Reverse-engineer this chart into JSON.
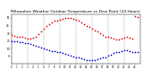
{
  "title": "Milwaukee Weather Outdoor Temperature vs Dew Point (24 Hours)",
  "title_fontsize": 3.2,
  "background_color": "#ffffff",
  "grid_color": "#888888",
  "xlim": [
    0,
    24
  ],
  "ylim": [
    -10,
    55
  ],
  "ytick_values": [
    0,
    10,
    20,
    30,
    40,
    50
  ],
  "ytick_labels": [
    "0",
    "10",
    "20",
    "30",
    "40",
    "50"
  ],
  "xtick_values": [
    0,
    1,
    2,
    3,
    4,
    5,
    6,
    7,
    8,
    9,
    10,
    11,
    12,
    13,
    14,
    15,
    16,
    17,
    18,
    19,
    20,
    21,
    22,
    23
  ],
  "vgrid_positions": [
    3,
    6,
    9,
    12,
    15,
    18,
    21
  ],
  "temp_x": [
    0,
    0.5,
    1,
    1.5,
    2,
    2.5,
    3,
    3.5,
    4,
    4.5,
    5,
    5.5,
    6,
    6.5,
    7,
    7.5,
    8,
    8.5,
    9,
    9.5,
    10,
    10.5,
    11,
    11.5,
    12,
    12.5,
    13,
    13.5,
    14,
    14.5,
    15,
    15.5,
    16,
    16.5,
    17,
    17.5,
    18,
    18.5,
    19,
    19.5,
    20,
    20.5,
    21,
    21.5,
    22,
    22.5,
    23,
    23.5
  ],
  "temp_y": [
    28,
    27,
    26,
    25,
    25,
    24,
    23,
    23,
    24,
    26,
    29,
    33,
    36,
    39,
    42,
    44,
    46,
    47,
    48,
    49,
    50,
    50,
    50,
    49,
    48,
    46,
    44,
    42,
    40,
    38,
    36,
    34,
    32,
    30,
    28,
    26,
    25,
    24,
    23,
    22,
    22,
    23,
    24,
    25,
    24,
    23,
    52,
    51
  ],
  "dew_x": [
    0,
    0.5,
    1,
    1.5,
    2,
    2.5,
    3,
    3.5,
    4,
    4.5,
    5,
    5.5,
    6,
    6.5,
    7,
    7.5,
    8,
    8.5,
    9,
    9.5,
    10,
    10.5,
    11,
    11.5,
    12,
    12.5,
    13,
    13.5,
    14,
    14.5,
    15,
    15.5,
    16,
    16.5,
    17,
    17.5,
    18,
    18.5,
    19,
    19.5,
    20,
    20.5,
    21,
    21.5,
    22,
    22.5,
    23,
    23.5
  ],
  "dew_y": [
    20,
    20,
    19,
    18,
    18,
    17,
    17,
    16,
    15,
    14,
    13,
    11,
    10,
    9,
    8,
    7,
    7,
    6,
    5,
    4,
    3,
    2,
    1,
    0,
    -1,
    -2,
    -3,
    -4,
    -5,
    -5,
    -5,
    -5,
    -4,
    -3,
    -2,
    -1,
    1,
    2,
    4,
    5,
    6,
    7,
    8,
    8,
    7,
    6,
    6,
    6
  ],
  "temp_color": "#dd0000",
  "dew_color": "#0000cc",
  "marker_size": 1.5
}
